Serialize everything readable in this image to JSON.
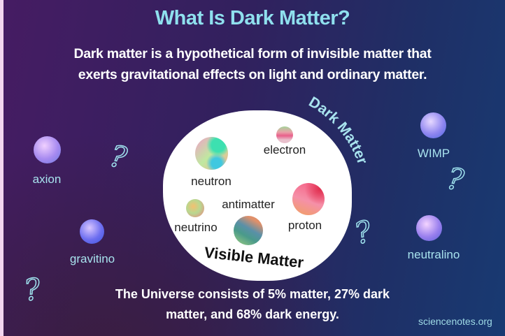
{
  "title": "What Is Dark Matter?",
  "subtitle_lines": [
    "Dark matter is a hypothetical form of invisible matter that",
    "exerts gravitational effects on light and ordinary matter."
  ],
  "dark_matter_label": "Dark Matter",
  "dark_matter_candidates": [
    {
      "label": "axion"
    },
    {
      "label": "gravitino"
    },
    {
      "label": "WIMP"
    },
    {
      "label": "neutralino"
    }
  ],
  "visible_matter": {
    "label": "Visible Matter",
    "particles": [
      {
        "label": "electron"
      },
      {
        "label": "neutron"
      },
      {
        "label": "antimatter"
      },
      {
        "label": "neutrino"
      },
      {
        "label": "proton"
      }
    ]
  },
  "question_mark": "?",
  "bottom_lines": [
    "The Universe consists of 5% matter, 27% dark",
    "matter, and 68% dark energy."
  ],
  "site": "sciencenotes.org",
  "colors": {
    "title": "#8fe0ee",
    "label": "#a8e3ee",
    "bg_left": "#461c63",
    "bg_right": "#183a72"
  }
}
